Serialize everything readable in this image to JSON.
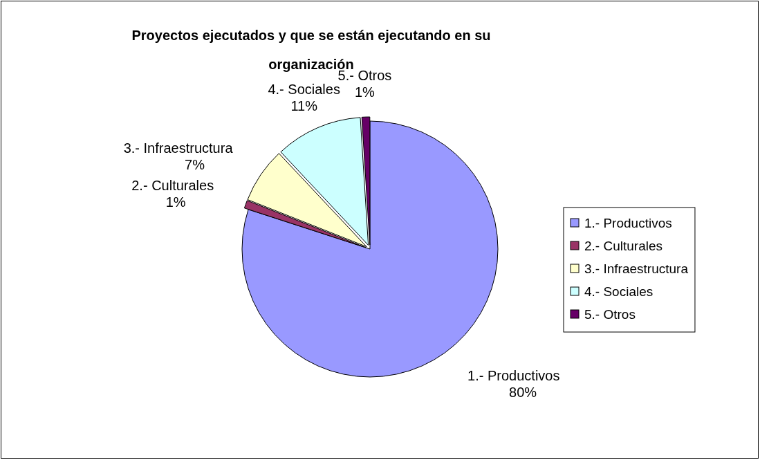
{
  "chart_data": {
    "type": "pie",
    "title": "Proyectos ejecutados y que se están ejecutando en  su organización",
    "categories": [
      "1.- Productivos",
      "2.- Culturales",
      "3.- Infraestructura",
      "4.- Sociales",
      "5.- Otros"
    ],
    "values": [
      80,
      1,
      7,
      11,
      1
    ],
    "colors": [
      "#9999ff",
      "#993366",
      "#ffffcc",
      "#ccffff",
      "#660066"
    ],
    "value_labels": [
      "80%",
      "1%",
      "7%",
      "11%",
      "1%"
    ],
    "legend": "right"
  }
}
